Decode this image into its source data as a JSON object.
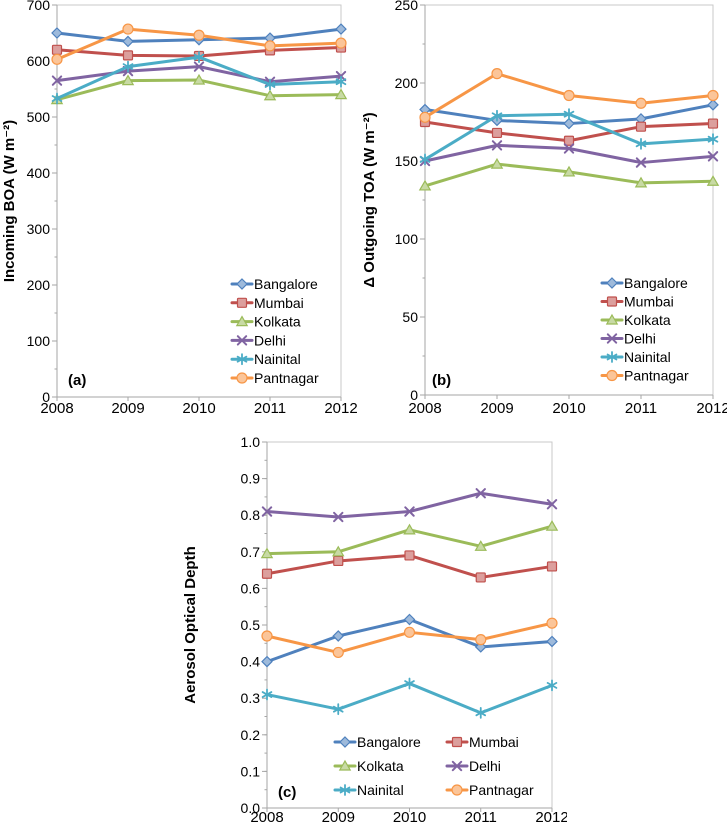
{
  "figure": {
    "background": "#ffffff",
    "panel_labels": [
      "(a)",
      "(b)",
      "(c)"
    ]
  },
  "colors": {
    "blue": "#4F81BD",
    "red": "#C0504D",
    "green": "#9BBB59",
    "purple": "#8064A2",
    "cyan": "#4BACC6",
    "orange": "#F79646",
    "axis_line": "#A6A6A6",
    "plot_border": "#C9C9C9",
    "text": "#000000"
  },
  "chart_data": [
    {
      "id": "a",
      "type": "line",
      "panel_label": "(a)",
      "title": "",
      "xlabel": "",
      "ylabel": "Incoming BOA (W m⁻²)",
      "x_labels": [
        "2008",
        "2009",
        "2010",
        "2011",
        "2012"
      ],
      "x": [
        2008,
        2009,
        2010,
        2011,
        2012
      ],
      "ylim": [
        0,
        700
      ],
      "ytick_values": [
        0,
        100,
        200,
        300,
        400,
        500,
        600,
        700
      ],
      "ytick_labels": [
        "0",
        "100",
        "200",
        "300",
        "400",
        "500",
        "600",
        "700"
      ],
      "minor_tick_step": 50,
      "grid": false,
      "legend": {
        "position": "inside lower right",
        "columns": 1
      },
      "series": [
        {
          "name": "Bangalore",
          "color": "blue",
          "marker": "diamond",
          "values": [
            650,
            635,
            638,
            641,
            657
          ]
        },
        {
          "name": "Mumbai",
          "color": "red",
          "marker": "square",
          "values": [
            620,
            610,
            609,
            619,
            624
          ]
        },
        {
          "name": "Kolkata",
          "color": "green",
          "marker": "triangle",
          "values": [
            531,
            565,
            566,
            538,
            540
          ]
        },
        {
          "name": "Delhi",
          "color": "purple",
          "marker": "x",
          "values": [
            565,
            582,
            590,
            563,
            573
          ]
        },
        {
          "name": "Nainital",
          "color": "cyan",
          "marker": "asterisk",
          "values": [
            533,
            590,
            607,
            558,
            563
          ]
        },
        {
          "name": "Pantnagar",
          "color": "orange",
          "marker": "circle",
          "values": [
            603,
            657,
            646,
            627,
            632
          ]
        }
      ]
    },
    {
      "id": "b",
      "type": "line",
      "panel_label": "(b)",
      "title": "",
      "xlabel": "",
      "ylabel": "Δ Outgoing TOA (W m⁻²)",
      "x_labels": [
        "2008",
        "2009",
        "2010",
        "2011",
        "2012"
      ],
      "x": [
        2008,
        2009,
        2010,
        2011,
        2012
      ],
      "ylim": [
        0,
        250
      ],
      "ytick_values": [
        0,
        50,
        100,
        150,
        200,
        250
      ],
      "ytick_labels": [
        "0",
        "50",
        "100",
        "150",
        "200",
        "250"
      ],
      "minor_tick_step": 25,
      "grid": false,
      "legend": {
        "position": "inside lower right",
        "columns": 1
      },
      "series": [
        {
          "name": "Bangalore",
          "color": "blue",
          "marker": "diamond",
          "values": [
            183,
            176,
            174,
            177,
            186
          ]
        },
        {
          "name": "Mumbai",
          "color": "red",
          "marker": "square",
          "values": [
            175,
            168,
            163,
            172,
            174
          ]
        },
        {
          "name": "Kolkata",
          "color": "green",
          "marker": "triangle",
          "values": [
            134,
            148,
            143,
            136,
            137
          ]
        },
        {
          "name": "Delhi",
          "color": "purple",
          "marker": "x",
          "values": [
            150,
            160,
            158,
            149,
            153
          ]
        },
        {
          "name": "Nainital",
          "color": "cyan",
          "marker": "asterisk",
          "values": [
            151,
            179,
            180,
            161,
            164
          ]
        },
        {
          "name": "Pantnagar",
          "color": "orange",
          "marker": "circle",
          "values": [
            178,
            206,
            192,
            187,
            192
          ]
        }
      ]
    },
    {
      "id": "c",
      "type": "line",
      "panel_label": "(c)",
      "title": "",
      "xlabel": "",
      "ylabel": "Aerosol Optical Depth",
      "x_labels": [
        "2008",
        "2009",
        "2010",
        "2011",
        "2012"
      ],
      "x": [
        2008,
        2009,
        2010,
        2011,
        2012
      ],
      "ylim": [
        0,
        1.0
      ],
      "ytick_values": [
        0,
        0.1,
        0.2,
        0.3,
        0.4,
        0.5,
        0.6,
        0.7,
        0.8,
        0.9,
        1.0
      ],
      "ytick_labels": [
        "0.0",
        "0.1",
        "0.2",
        "0.3",
        "0.4",
        "0.5",
        "0.6",
        "0.7",
        "0.8",
        "0.9",
        "1.0"
      ],
      "minor_tick_step": 0.05,
      "grid": false,
      "legend": {
        "position": "inside lower center",
        "columns": 2
      },
      "series": [
        {
          "name": "Bangalore",
          "color": "blue",
          "marker": "diamond",
          "values": [
            0.4,
            0.47,
            0.515,
            0.44,
            0.455
          ]
        },
        {
          "name": "Mumbai",
          "color": "red",
          "marker": "square",
          "values": [
            0.64,
            0.675,
            0.69,
            0.63,
            0.66
          ]
        },
        {
          "name": "Kolkata",
          "color": "green",
          "marker": "triangle",
          "values": [
            0.695,
            0.7,
            0.76,
            0.715,
            0.77
          ]
        },
        {
          "name": "Delhi",
          "color": "purple",
          "marker": "x",
          "values": [
            0.81,
            0.795,
            0.81,
            0.86,
            0.83
          ]
        },
        {
          "name": "Nainital",
          "color": "cyan",
          "marker": "asterisk",
          "values": [
            0.31,
            0.27,
            0.34,
            0.26,
            0.335
          ]
        },
        {
          "name": "Pantnagar",
          "color": "orange",
          "marker": "circle",
          "values": [
            0.47,
            0.425,
            0.48,
            0.46,
            0.505
          ]
        }
      ]
    }
  ]
}
